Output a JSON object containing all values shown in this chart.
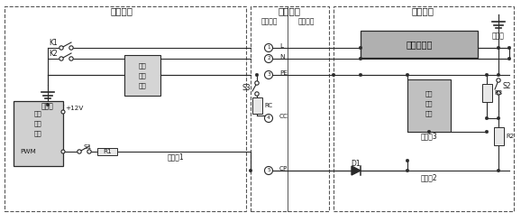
{
  "fig_width": 5.78,
  "fig_height": 2.46,
  "dpi": 100,
  "bg_color": "#ffffff",
  "line_color": "#2a2a2a",
  "dashed_color": "#555555",
  "label_供电设备": "供电设备",
  "label_车辆接口": "车辆接口",
  "label_电动汽车": "电动汽车",
  "label_车辆插头": "车辆插头",
  "label_车辆插座": "车辆插座",
  "label_车载充电机": "车载充电机",
  "label_漏电流保护器": [
    "漏电",
    "流保",
    "护器"
  ],
  "label_供电控制装置": [
    "供电",
    "控制",
    "装置"
  ],
  "label_车辆控制装置": [
    "车辆",
    "控制",
    "装置"
  ],
  "label_设备地": "设备地",
  "label_车身地": "车身地",
  "label_检测点1": "检测点1",
  "label_检测点2": "检测点2",
  "label_检测点3": "检测点3"
}
